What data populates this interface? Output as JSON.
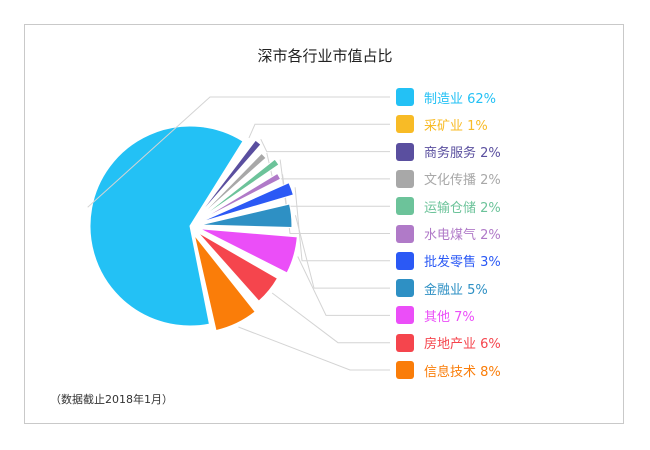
{
  "chart_data": {
    "type": "pie",
    "title": "深市各行业市值占比",
    "note": "（数据截止2018年1月）",
    "slices": [
      {
        "name": "制造业",
        "label": "制造业 62%",
        "value": 62,
        "color": "#23c1f5"
      },
      {
        "name": "采矿业",
        "label": "采矿业 1%",
        "value": 1,
        "color": "#f8bb26"
      },
      {
        "name": "商务服务",
        "label": "商务服务 2%",
        "value": 2,
        "color": "#5a4f9f"
      },
      {
        "name": "文化传播",
        "label": "文化传播 2%",
        "value": 2,
        "color": "#a8a8a8"
      },
      {
        "name": "运输仓储",
        "label": "运输仓储 2%",
        "value": 2,
        "color": "#6cc39a"
      },
      {
        "name": "水电煤气",
        "label": "水电煤气 2%",
        "value": 2,
        "color": "#b07ac8"
      },
      {
        "name": "批发零售",
        "label": "批发零售 3%",
        "value": 3,
        "color": "#2b59f5"
      },
      {
        "name": "金融业",
        "label": "金融业 5%",
        "value": 5,
        "color": "#2e90c4"
      },
      {
        "name": "其他",
        "label": "其他 7%",
        "value": 7,
        "color": "#eb4ef8"
      },
      {
        "name": "房地产业",
        "label": "房地产业 6%",
        "value": 6,
        "color": "#f5454d"
      },
      {
        "name": "信息技术",
        "label": "信息技术 8%",
        "value": 8,
        "color": "#fa7d09"
      }
    ],
    "legend_position": "right"
  }
}
